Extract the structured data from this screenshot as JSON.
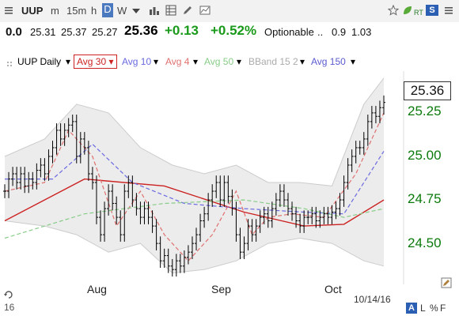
{
  "toolbar": {
    "symbol": "UUP",
    "intervals": [
      "m",
      "15m",
      "h",
      "D",
      "W"
    ],
    "active_interval": "D",
    "rt_label": "RT",
    "s_badge": "S",
    "icons": [
      "dropdown-icon",
      "bar-chart-icon",
      "settings-grid-icon",
      "pencil-icon",
      "chart-image-icon",
      "star-icon",
      "leaf-icon",
      "menu-icon"
    ]
  },
  "quote": {
    "change_small": "0.0",
    "open": "25.31",
    "high": "25.37",
    "low": "25.27",
    "last": "25.36",
    "change": "+0.13",
    "percent": "+0.52%",
    "optionable": "Optionable",
    "dots": "..",
    "v1": "0.9",
    "v2": "1.03"
  },
  "legend": {
    "items": [
      {
        "label": "UUP Daily",
        "color": "#2e6e2e"
      },
      {
        "label": "Avg 30",
        "color": "#cc2222",
        "boxed": true
      },
      {
        "label": "Avg 10",
        "color": "#6a6ae0"
      },
      {
        "label": "Avg 4",
        "color": "#e07070"
      },
      {
        "label": "Avg 50",
        "color": "#88cc88"
      },
      {
        "label": "BBand 15 2",
        "color": "#aaaaaa"
      },
      {
        "label": "Avg 150",
        "color": "#5a5ad0"
      }
    ]
  },
  "footer": {
    "date": "10/14/16",
    "axis_marker": "16",
    "a_badge": "A",
    "l_label": "L",
    "pct_label": "%",
    "f_label": "F"
  },
  "chart_data": {
    "type": "ohlc",
    "title": "UUP Daily",
    "last_price_label": "25.36",
    "ylim": [
      24.36,
      25.54
    ],
    "y_ticks": [
      24.5,
      24.75,
      25.0,
      25.25
    ],
    "y_tick_labels": [
      "24.50",
      "24.75",
      "25.00",
      "25.25"
    ],
    "x_ticks": [
      {
        "label": "Aug",
        "index": 25
      },
      {
        "label": "Sep",
        "index": 58
      },
      {
        "label": "Oct",
        "index": 88
      }
    ],
    "closes": [
      24.85,
      24.92,
      24.95,
      24.9,
      24.95,
      24.88,
      24.92,
      24.9,
      24.97,
      25.0,
      24.95,
      25.05,
      25.1,
      25.2,
      25.15,
      25.2,
      25.23,
      25.25,
      25.05,
      25.15,
      25.1,
      24.95,
      24.9,
      24.7,
      24.6,
      24.75,
      24.85,
      24.78,
      24.7,
      24.6,
      24.85,
      24.9,
      24.8,
      24.75,
      24.7,
      24.75,
      24.7,
      24.65,
      24.55,
      24.45,
      24.48,
      24.42,
      24.4,
      24.45,
      24.42,
      24.47,
      24.5,
      24.55,
      24.6,
      24.68,
      24.72,
      24.8,
      24.85,
      24.9,
      24.8,
      24.9,
      24.82,
      24.75,
      24.6,
      24.5,
      24.55,
      24.65,
      24.6,
      24.65,
      24.7,
      24.72,
      24.68,
      24.75,
      24.8,
      24.85,
      24.8,
      24.75,
      24.72,
      24.68,
      24.65,
      24.7,
      24.7,
      24.72,
      24.68,
      24.7,
      24.72,
      24.7,
      24.73,
      24.75,
      24.8,
      24.9,
      25.0,
      25.05,
      25.1,
      25.1,
      25.15,
      25.25,
      25.3,
      25.28,
      25.33,
      25.36
    ],
    "series": [
      {
        "name": "Avg 30",
        "color": "#cc2222",
        "dash": "solid",
        "points": [
          [
            0,
            24.68
          ],
          [
            20,
            24.92
          ],
          [
            40,
            24.88
          ],
          [
            60,
            24.73
          ],
          [
            75,
            24.65
          ],
          [
            85,
            24.66
          ],
          [
            95,
            24.8
          ]
        ]
      },
      {
        "name": "Avg 10",
        "color": "#6a6ae0",
        "dash": "dashed",
        "points": [
          [
            0,
            24.92
          ],
          [
            12,
            24.92
          ],
          [
            22,
            25.12
          ],
          [
            32,
            24.9
          ],
          [
            45,
            24.78
          ],
          [
            60,
            24.75
          ],
          [
            75,
            24.73
          ],
          [
            85,
            24.72
          ],
          [
            95,
            25.08
          ]
        ]
      },
      {
        "name": "Avg 4",
        "color": "#e07070",
        "dash": "dashed",
        "points": [
          [
            0,
            24.85
          ],
          [
            10,
            24.9
          ],
          [
            16,
            25.2
          ],
          [
            22,
            25.05
          ],
          [
            28,
            24.65
          ],
          [
            34,
            24.85
          ],
          [
            40,
            24.6
          ],
          [
            46,
            24.45
          ],
          [
            52,
            24.6
          ],
          [
            58,
            24.85
          ],
          [
            62,
            24.6
          ],
          [
            66,
            24.7
          ],
          [
            72,
            24.72
          ],
          [
            80,
            24.7
          ],
          [
            88,
            24.95
          ],
          [
            95,
            25.3
          ]
        ]
      },
      {
        "name": "Avg 50",
        "color": "#88cc88",
        "dash": "dashed",
        "points": [
          [
            0,
            24.58
          ],
          [
            20,
            24.72
          ],
          [
            40,
            24.78
          ],
          [
            60,
            24.8
          ],
          [
            75,
            24.75
          ],
          [
            85,
            24.7
          ],
          [
            95,
            24.75
          ]
        ]
      }
    ],
    "bband": {
      "upper": [
        [
          0,
          25.05
        ],
        [
          10,
          25.15
        ],
        [
          18,
          25.35
        ],
        [
          26,
          25.3
        ],
        [
          34,
          25.1
        ],
        [
          42,
          25.0
        ],
        [
          50,
          24.95
        ],
        [
          58,
          25.0
        ],
        [
          66,
          24.9
        ],
        [
          74,
          24.9
        ],
        [
          82,
          24.88
        ],
        [
          90,
          25.35
        ],
        [
          95,
          25.5
        ]
      ],
      "lower": [
        [
          0,
          24.68
        ],
        [
          10,
          24.65
        ],
        [
          18,
          24.6
        ],
        [
          26,
          24.5
        ],
        [
          34,
          24.55
        ],
        [
          42,
          24.38
        ],
        [
          50,
          24.4
        ],
        [
          58,
          24.45
        ],
        [
          66,
          24.55
        ],
        [
          74,
          24.58
        ],
        [
          82,
          24.55
        ],
        [
          90,
          24.45
        ],
        [
          95,
          24.42
        ]
      ]
    },
    "colors": {
      "candles": "#000000",
      "bband_fill": "#ececec",
      "bband_edge": "#cccccc",
      "y_labels": "#0b7a0b"
    }
  }
}
